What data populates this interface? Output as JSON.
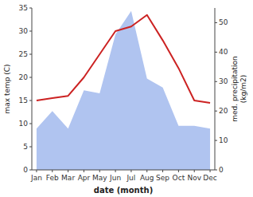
{
  "chart_data": {
    "type": "line",
    "categories": [
      "Jan",
      "Feb",
      "Mar",
      "Apr",
      "May",
      "Jun",
      "Jul",
      "Aug",
      "Sep",
      "Oct",
      "Nov",
      "Dec"
    ],
    "series": [
      {
        "type": "area",
        "axis": "y2",
        "color": "#b0c4f0",
        "values": [
          14,
          20,
          14,
          27,
          26,
          46,
          54,
          31,
          28,
          15,
          15,
          14
        ]
      },
      {
        "type": "line",
        "color": "#cc2222",
        "values": [
          15,
          15.5,
          16,
          20,
          25,
          30,
          31,
          33.5,
          28,
          22,
          15,
          14.5
        ]
      }
    ],
    "x_label": "date (month)",
    "y_label": "max temp (C)",
    "y2_label": "med. precipitation\n(kg/m2)",
    "ylim": [
      0,
      35
    ],
    "yticks": [
      0,
      5,
      10,
      15,
      20,
      25,
      30,
      35
    ],
    "y2lim": [
      0,
      55
    ],
    "y2ticks": [
      0,
      10,
      20,
      30,
      40,
      50
    ],
    "grid": false
  }
}
